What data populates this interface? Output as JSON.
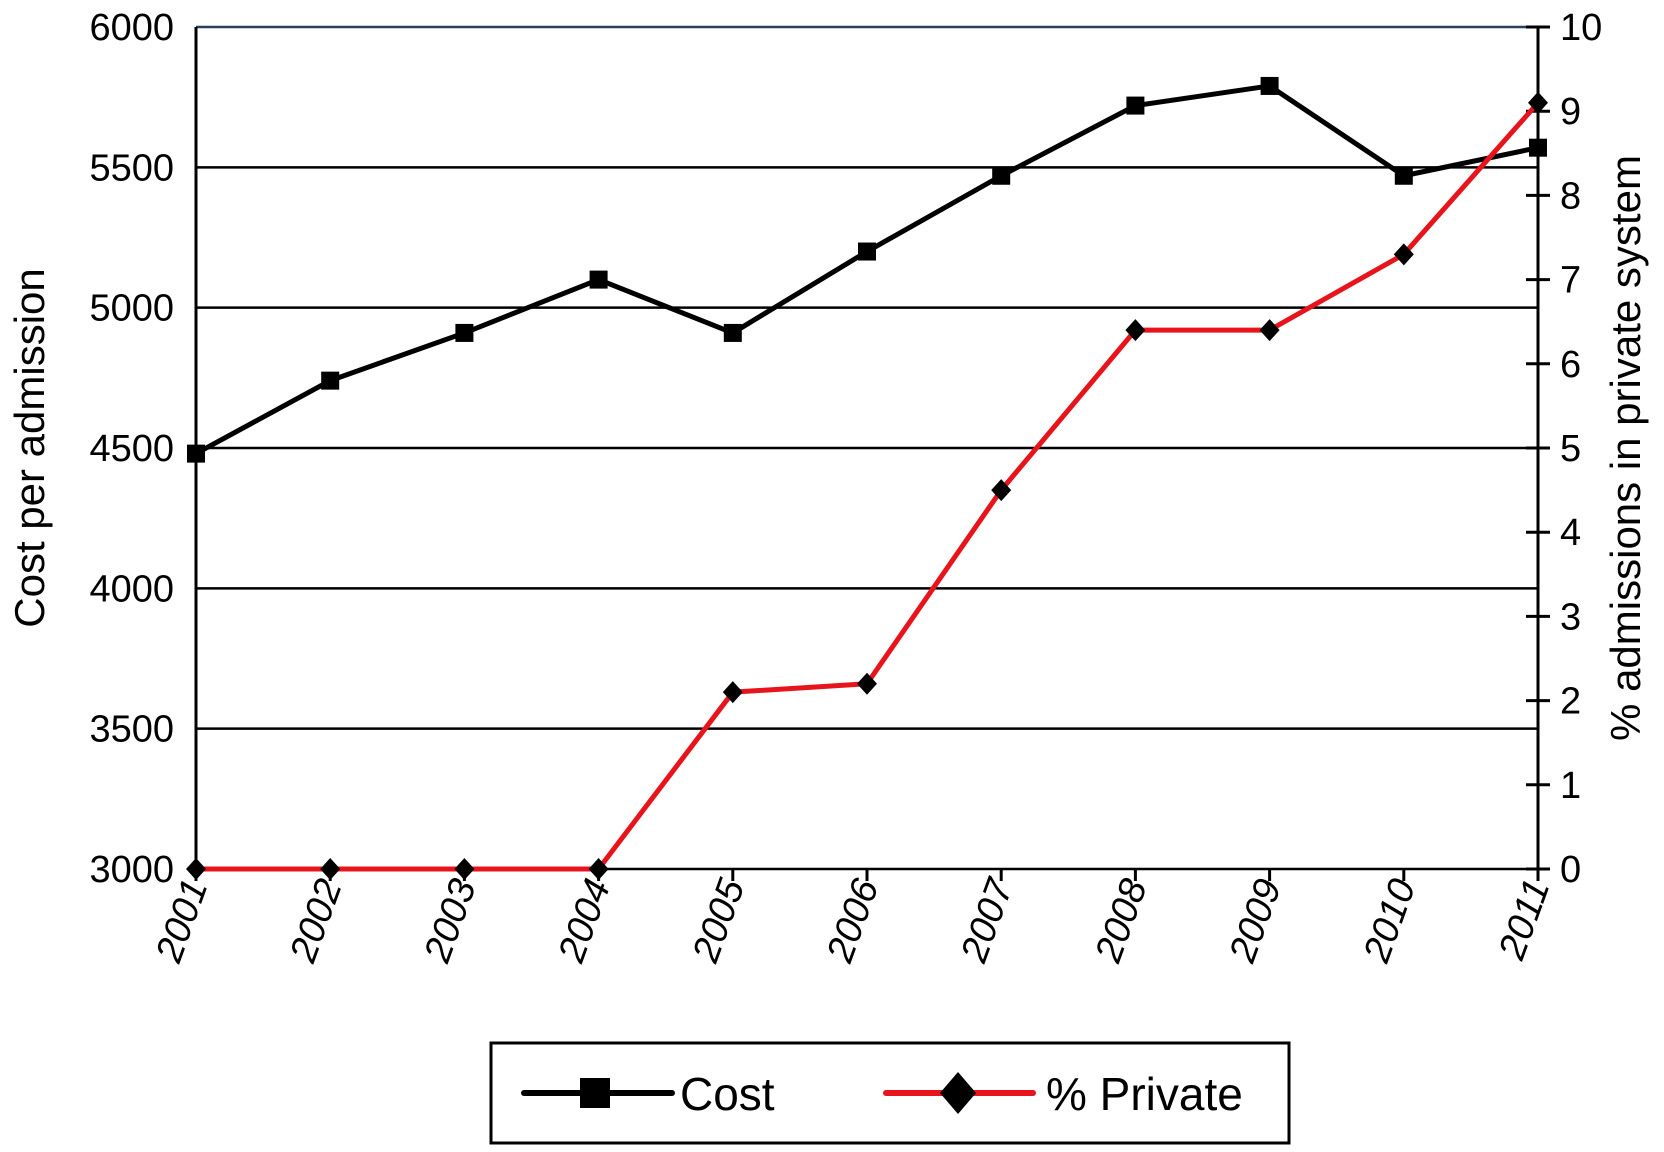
{
  "chart_data": {
    "type": "line",
    "x": [
      "2001",
      "2002",
      "2003",
      "2004",
      "2005",
      "2006",
      "2007",
      "2008",
      "2009",
      "2010",
      "2011"
    ],
    "series": [
      {
        "name": "Cost",
        "axis": "left",
        "color": "#000000",
        "marker": "square",
        "values": [
          4480,
          4740,
          4910,
          5100,
          4910,
          5200,
          5470,
          5720,
          5790,
          5470,
          5570
        ]
      },
      {
        "name": "% Private",
        "axis": "right",
        "color": "#e8141c",
        "marker": "diamond",
        "values": [
          0,
          0,
          0,
          0,
          2.1,
          2.2,
          4.5,
          6.4,
          6.4,
          7.3,
          9.1
        ]
      }
    ],
    "ylabel": "Cost per admission",
    "y2label": "% admissions in private system",
    "xlabel": "",
    "ylim": [
      3000,
      6000
    ],
    "y2lim": [
      0,
      10
    ],
    "yticks": [
      "3000",
      "3500",
      "4000",
      "4500",
      "5000",
      "5500",
      "6000"
    ],
    "y2ticks": [
      "0",
      "1",
      "2",
      "3",
      "4",
      "5",
      "6",
      "7",
      "8",
      "9",
      "10"
    ],
    "grid": "horizontal",
    "legend": "bottom"
  }
}
